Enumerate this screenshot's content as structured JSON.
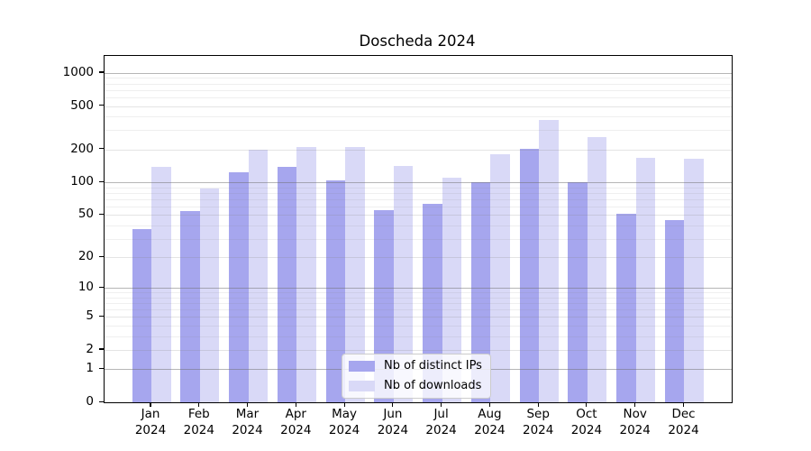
{
  "chart_data": {
    "type": "bar",
    "title": "Doscheda 2024",
    "xlabel": "",
    "ylabel": "",
    "categories": [
      "Jan",
      "Feb",
      "Mar",
      "Apr",
      "May",
      "Jun",
      "Jul",
      "Aug",
      "Sep",
      "Oct",
      "Nov",
      "Dec"
    ],
    "year_label": "2024",
    "series": [
      {
        "name": "Nb of distinct IPs",
        "color": "#a6a6ee",
        "values": [
          37,
          54,
          123,
          140,
          104,
          55,
          63,
          101,
          202,
          101,
          51,
          45
        ]
      },
      {
        "name": "Nb of downloads",
        "color": "#d9d9f7",
        "values": [
          138,
          87,
          200,
          212,
          212,
          142,
          110,
          181,
          372,
          259,
          168,
          164
        ]
      }
    ],
    "y_axis": {
      "scale": "log10(1+v)",
      "ylim": [
        0,
        1430
      ],
      "tick_values": [
        0,
        1,
        2,
        5,
        10,
        20,
        50,
        100,
        200,
        500,
        1000
      ],
      "tick_labels": [
        "0",
        "1",
        "2",
        "5",
        "10",
        "20",
        "50",
        "100",
        "200",
        "500",
        "1000"
      ],
      "decade_grid_values": [
        1,
        10,
        100,
        1000
      ],
      "sub_grid_values": [
        2,
        5,
        20,
        50,
        200,
        500
      ],
      "minor_grid_values": [
        3,
        4,
        6,
        7,
        8,
        9,
        30,
        40,
        60,
        70,
        80,
        90,
        300,
        400,
        600,
        700,
        800,
        900
      ]
    },
    "legend": {
      "position": "lower center",
      "labels": [
        "Nb of distinct IPs",
        "Nb of downloads"
      ]
    },
    "grid": true,
    "colors": {
      "spine": "#000000",
      "background": "#ffffff",
      "bar_ips": "#a6a6ee",
      "bar_downloads": "#d9d9f7"
    }
  }
}
